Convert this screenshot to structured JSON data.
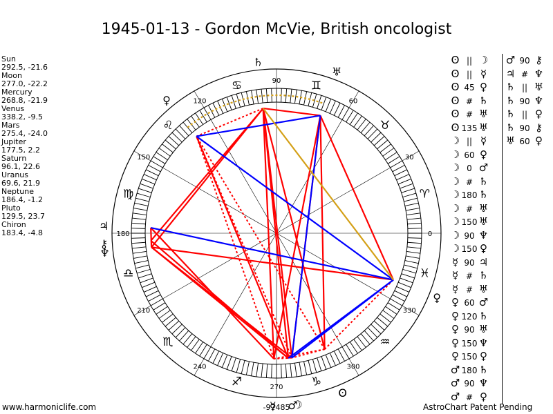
{
  "title": "1945-01-13 - Gordon McVie, British oncologist",
  "footer": {
    "left": "www.harmoniclife.com",
    "right": "AstroChart Patent Pending"
  },
  "planets": [
    {
      "name": "Sun",
      "coords": "292.5, -21.6",
      "longitude": 292.5,
      "glyph": "ʘ"
    },
    {
      "name": "Moon",
      "coords": "277.0, -22.2",
      "longitude": 277.0,
      "glyph": "☽"
    },
    {
      "name": "Mercury",
      "coords": "268.8, -21.9",
      "longitude": 268.8,
      "glyph": "☿"
    },
    {
      "name": "Venus",
      "coords": "338.2, -9.5",
      "longitude": 338.2,
      "glyph": "♀"
    },
    {
      "name": "Mars",
      "coords": "275.4, -24.0",
      "longitude": 275.4,
      "glyph": "♂"
    },
    {
      "name": "Jupiter",
      "coords": "177.5, 2.2",
      "longitude": 177.5,
      "glyph": "♃"
    },
    {
      "name": "Saturn",
      "coords": "96.1, 22.6",
      "longitude": 96.1,
      "glyph": "♄"
    },
    {
      "name": "Uranus",
      "coords": "69.6, 21.9",
      "longitude": 69.6,
      "glyph": "♅"
    },
    {
      "name": "Neptune",
      "coords": "186.4, -1.2",
      "longitude": 186.4,
      "glyph": "♆"
    },
    {
      "name": "Pluto",
      "coords": "129.5, 23.7",
      "longitude": 129.5,
      "glyph": "♀"
    },
    {
      "name": "Chiron",
      "coords": "183.4, -4.8",
      "longitude": 183.4,
      "glyph": "⚷"
    }
  ],
  "degree_labels": [
    "0",
    "30",
    "60",
    "90",
    "120",
    "150",
    "180",
    "210",
    "240",
    "270",
    "300",
    "330"
  ],
  "degree_values": [
    0,
    30,
    60,
    90,
    120,
    150,
    180,
    210,
    240,
    270,
    300,
    330
  ],
  "zodiac_signs": [
    "♈",
    "♉",
    "♊",
    "♋",
    "♌",
    "♍",
    "♎",
    "♏",
    "♐",
    "♑",
    "♒",
    "♓"
  ],
  "bottom_label": "-97485",
  "aspects_left": [
    {
      "a": "ʘ",
      "s": "||",
      "b": "☽"
    },
    {
      "a": "ʘ",
      "s": "||",
      "b": "☿"
    },
    {
      "a": "ʘ",
      "s": "45",
      "b": "♀"
    },
    {
      "a": "ʘ",
      "s": "#",
      "b": "♄"
    },
    {
      "a": "ʘ",
      "s": "#",
      "b": "♅"
    },
    {
      "a": "ʘ",
      "s": "135",
      "b": "♅"
    },
    {
      "a": "☽",
      "s": "||",
      "b": "☿"
    },
    {
      "a": "☽",
      "s": "60",
      "b": "♀"
    },
    {
      "a": "☽",
      "s": "0",
      "b": "♂"
    },
    {
      "a": "☽",
      "s": "#",
      "b": "♄"
    },
    {
      "a": "☽",
      "s": "180",
      "b": "♄"
    },
    {
      "a": "☽",
      "s": "#",
      "b": "♅"
    },
    {
      "a": "☽",
      "s": "150",
      "b": "♅"
    },
    {
      "a": "☽",
      "s": "90",
      "b": "♆"
    },
    {
      "a": "☽",
      "s": "150",
      "b": "♀"
    },
    {
      "a": "☿",
      "s": "90",
      "b": "♃"
    },
    {
      "a": "☿",
      "s": "#",
      "b": "♄"
    },
    {
      "a": "☿",
      "s": "#",
      "b": "♅"
    },
    {
      "a": "♀",
      "s": "60",
      "b": "♂"
    },
    {
      "a": "♀",
      "s": "120",
      "b": "♄"
    },
    {
      "a": "♀",
      "s": "90",
      "b": "♅"
    },
    {
      "a": "♀",
      "s": "150",
      "b": "♆"
    },
    {
      "a": "♀",
      "s": "150",
      "b": "♀"
    },
    {
      "a": "♂",
      "s": "180",
      "b": "♄"
    },
    {
      "a": "♂",
      "s": "90",
      "b": "♆"
    },
    {
      "a": "♂",
      "s": "#",
      "b": "♀"
    }
  ],
  "aspects_right": [
    {
      "a": "♂",
      "s": "90",
      "b": "⚷"
    },
    {
      "a": "♃",
      "s": "#",
      "b": "♆"
    },
    {
      "a": "♄",
      "s": "||",
      "b": "♅"
    },
    {
      "a": "♄",
      "s": "90",
      "b": "♆"
    },
    {
      "a": "♄",
      "s": "||",
      "b": "♀"
    },
    {
      "a": "♄",
      "s": "90",
      "b": "⚷"
    },
    {
      "a": "♅",
      "s": "60",
      "b": "♀"
    }
  ],
  "colors": {
    "opposition": "#ff0000",
    "square": "#ff0000",
    "trine": "#0000ff",
    "sextile": "#0000ff",
    "quincunx": "#d4a017",
    "wheel": "#000000"
  }
}
